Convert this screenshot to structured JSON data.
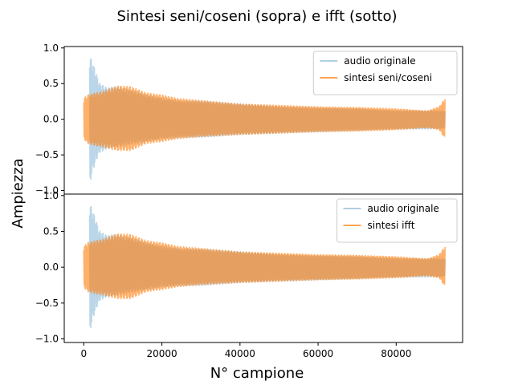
{
  "figure": {
    "title": "Sintesi seni/coseni (sopra) e ifft (sotto)",
    "xlabel": "N° campione",
    "ylabel": "Ampiezza"
  },
  "colors": {
    "original": "#1f77b4",
    "synthesis": "#ff7f0e",
    "axes": "#000000"
  },
  "chart_data": [
    {
      "type": "line",
      "position": "top",
      "xlim": [
        -5000,
        97000
      ],
      "ylim": [
        -1.05,
        1.02
      ],
      "yticks": [
        -1.0,
        -0.5,
        0.0,
        0.5,
        1.0
      ],
      "ytick_labels": [
        "−1.0",
        "−0.5",
        "0.0",
        "0.5",
        "1.0"
      ],
      "legend_position": "upper right",
      "series": [
        {
          "name": "audio originale",
          "style": "light-blue filled oscillation",
          "x": [
            1500,
            2000,
            3000,
            4000,
            6000,
            8000,
            12000,
            16000,
            20000,
            25000,
            30000,
            40000,
            50000,
            60000,
            70000,
            80000,
            88000,
            92500
          ],
          "max": [
            0.93,
            0.85,
            0.7,
            0.52,
            0.45,
            0.47,
            0.42,
            0.35,
            0.3,
            0.26,
            0.26,
            0.22,
            0.18,
            0.16,
            0.15,
            0.12,
            0.12,
            0.12
          ],
          "min": [
            -0.98,
            -0.8,
            -0.62,
            -0.48,
            -0.42,
            -0.4,
            -0.35,
            -0.32,
            -0.28,
            -0.26,
            -0.26,
            -0.22,
            -0.2,
            -0.18,
            -0.16,
            -0.14,
            -0.14,
            -0.13
          ]
        },
        {
          "name": "sintesi seni/coseni",
          "style": "orange filled oscillation",
          "x": [
            0,
            1000,
            3000,
            5000,
            7000,
            9000,
            12000,
            16000,
            20000,
            24000,
            30000,
            40000,
            50000,
            60000,
            70000,
            80000,
            88000,
            91000,
            92500
          ],
          "max": [
            0.3,
            0.35,
            0.38,
            0.4,
            0.45,
            0.48,
            0.47,
            0.38,
            0.35,
            0.3,
            0.27,
            0.22,
            0.2,
            0.18,
            0.17,
            0.15,
            0.12,
            0.18,
            0.3
          ],
          "min": [
            -0.28,
            -0.35,
            -0.38,
            -0.4,
            -0.43,
            -0.45,
            -0.45,
            -0.35,
            -0.32,
            -0.28,
            -0.25,
            -0.22,
            -0.2,
            -0.18,
            -0.17,
            -0.15,
            -0.12,
            -0.15,
            -0.28
          ]
        }
      ]
    },
    {
      "type": "line",
      "position": "bottom",
      "xlim": [
        -5000,
        97000
      ],
      "ylim": [
        -1.05,
        1.02
      ],
      "xticks": [
        0,
        20000,
        40000,
        60000,
        80000
      ],
      "xtick_labels": [
        "0",
        "20000",
        "40000",
        "60000",
        "80000"
      ],
      "yticks": [
        -1.0,
        -0.5,
        0.0,
        0.5,
        1.0
      ],
      "ytick_labels": [
        "−1.0",
        "−0.5",
        "0.0",
        "0.5",
        "1.0"
      ],
      "legend_position": "upper right",
      "series": [
        {
          "name": "audio originale",
          "style": "light-blue filled oscillation",
          "x": [
            1500,
            2000,
            3000,
            4000,
            6000,
            8000,
            12000,
            16000,
            20000,
            25000,
            30000,
            40000,
            50000,
            60000,
            70000,
            80000,
            88000,
            92500
          ],
          "max": [
            0.93,
            0.85,
            0.7,
            0.52,
            0.45,
            0.47,
            0.42,
            0.35,
            0.3,
            0.26,
            0.26,
            0.22,
            0.18,
            0.16,
            0.15,
            0.12,
            0.12,
            0.12
          ],
          "min": [
            -0.98,
            -0.8,
            -0.62,
            -0.48,
            -0.42,
            -0.4,
            -0.35,
            -0.32,
            -0.28,
            -0.26,
            -0.26,
            -0.22,
            -0.2,
            -0.18,
            -0.16,
            -0.14,
            -0.14,
            -0.13
          ]
        },
        {
          "name": "sintesi ifft",
          "style": "orange filled oscillation",
          "x": [
            0,
            1000,
            3000,
            5000,
            7000,
            9000,
            12000,
            16000,
            20000,
            24000,
            30000,
            40000,
            50000,
            60000,
            70000,
            80000,
            88000,
            91000,
            92500
          ],
          "max": [
            0.3,
            0.35,
            0.38,
            0.4,
            0.45,
            0.48,
            0.47,
            0.38,
            0.35,
            0.3,
            0.27,
            0.22,
            0.2,
            0.18,
            0.17,
            0.15,
            0.12,
            0.18,
            0.3
          ],
          "min": [
            -0.28,
            -0.35,
            -0.38,
            -0.4,
            -0.43,
            -0.45,
            -0.45,
            -0.35,
            -0.32,
            -0.28,
            -0.25,
            -0.22,
            -0.2,
            -0.18,
            -0.17,
            -0.15,
            -0.12,
            -0.15,
            -0.28
          ]
        }
      ]
    }
  ]
}
